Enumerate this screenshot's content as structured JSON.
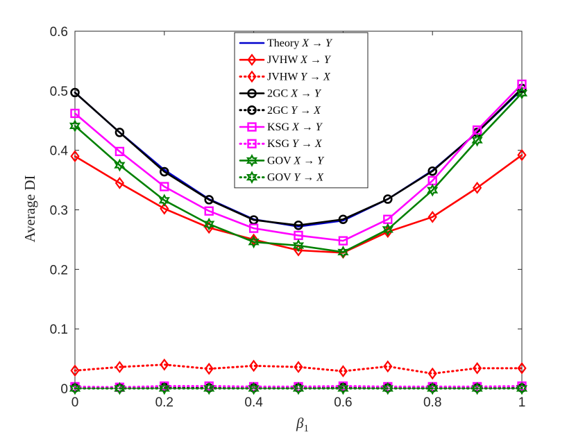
{
  "chart_data": {
    "type": "line",
    "xlabel": "β",
    "xlabel_sub": "1",
    "ylabel": "Average DI",
    "xlim": [
      0,
      1
    ],
    "ylim": [
      0,
      0.6
    ],
    "grid": false,
    "legend_position": "top-center",
    "x": [
      0,
      0.1,
      0.2,
      0.3,
      0.4,
      0.5,
      0.6,
      0.7,
      0.8,
      0.9,
      1.0
    ],
    "x_ticks": [
      0,
      0.2,
      0.4,
      0.6,
      0.8,
      1
    ],
    "x_tick_labels": [
      "0",
      "0.2",
      "0.4",
      "0.6",
      "0.8",
      "1"
    ],
    "y_ticks": [
      0,
      0.1,
      0.2,
      0.3,
      0.4,
      0.5,
      0.6
    ],
    "y_tick_labels": [
      "0",
      "0.1",
      "0.2",
      "0.3",
      "0.4",
      "0.5",
      "0.6"
    ],
    "series": [
      {
        "name": "Theory X → Y",
        "label_main": "Theory",
        "label_dir": "X → Y",
        "color": "#0000cc",
        "style": "solid",
        "marker": "none",
        "values": [
          0.497,
          0.43,
          0.367,
          0.318,
          0.284,
          0.272,
          0.282,
          0.318,
          0.366,
          0.43,
          0.502
        ]
      },
      {
        "name": "JVHW X → Y",
        "label_main": "JVHW",
        "label_dir": "X → Y",
        "color": "#ff0000",
        "style": "solid",
        "marker": "diamond",
        "values": [
          0.39,
          0.345,
          0.302,
          0.27,
          0.25,
          0.232,
          0.228,
          0.263,
          0.288,
          0.337,
          0.392
        ]
      },
      {
        "name": "JVHW Y → X",
        "label_main": "JVHW",
        "label_dir": "Y → X",
        "color": "#ff0000",
        "style": "dotted",
        "marker": "diamond",
        "values": [
          0.03,
          0.036,
          0.04,
          0.033,
          0.038,
          0.036,
          0.029,
          0.037,
          0.025,
          0.034,
          0.034
        ]
      },
      {
        "name": "2GC X → Y",
        "label_main": "2GC",
        "label_dir": "X → Y",
        "color": "#000000",
        "style": "solid",
        "marker": "circle",
        "values": [
          0.497,
          0.43,
          0.364,
          0.317,
          0.283,
          0.274,
          0.284,
          0.318,
          0.365,
          0.43,
          0.504
        ]
      },
      {
        "name": "2GC Y → X",
        "label_main": "2GC",
        "label_dir": "Y → X",
        "color": "#000000",
        "style": "dotted",
        "marker": "circle",
        "values": [
          0.001,
          0.001,
          0.002,
          0.001,
          0.001,
          0.001,
          0.002,
          0.001,
          0.001,
          0.001,
          0.001
        ]
      },
      {
        "name": "KSG X → Y",
        "label_main": "KSG",
        "label_dir": "X → Y",
        "color": "#ff00ff",
        "style": "solid",
        "marker": "square",
        "values": [
          0.462,
          0.398,
          0.339,
          0.298,
          0.269,
          0.257,
          0.248,
          0.284,
          0.349,
          0.434,
          0.511
        ]
      },
      {
        "name": "KSG Y → X",
        "label_main": "KSG",
        "label_dir": "Y → X",
        "color": "#ff00ff",
        "style": "dotted",
        "marker": "square",
        "values": [
          0.003,
          0.002,
          0.004,
          0.004,
          0.003,
          0.003,
          0.004,
          0.003,
          0.003,
          0.003,
          0.004
        ]
      },
      {
        "name": "GOV X → Y",
        "label_main": "GOV",
        "label_dir": "X → Y",
        "color": "#008000",
        "style": "solid",
        "marker": "hexagram",
        "values": [
          0.441,
          0.375,
          0.316,
          0.276,
          0.246,
          0.24,
          0.229,
          0.267,
          0.333,
          0.417,
          0.496
        ]
      },
      {
        "name": "GOV Y → X",
        "label_main": "GOV",
        "label_dir": "Y → X",
        "color": "#008000",
        "style": "dotted",
        "marker": "hexagram",
        "values": [
          0.0,
          0.0,
          0.0,
          0.0,
          0.0,
          0.0,
          0.0,
          0.0,
          0.0,
          0.0,
          0.0
        ]
      }
    ]
  }
}
